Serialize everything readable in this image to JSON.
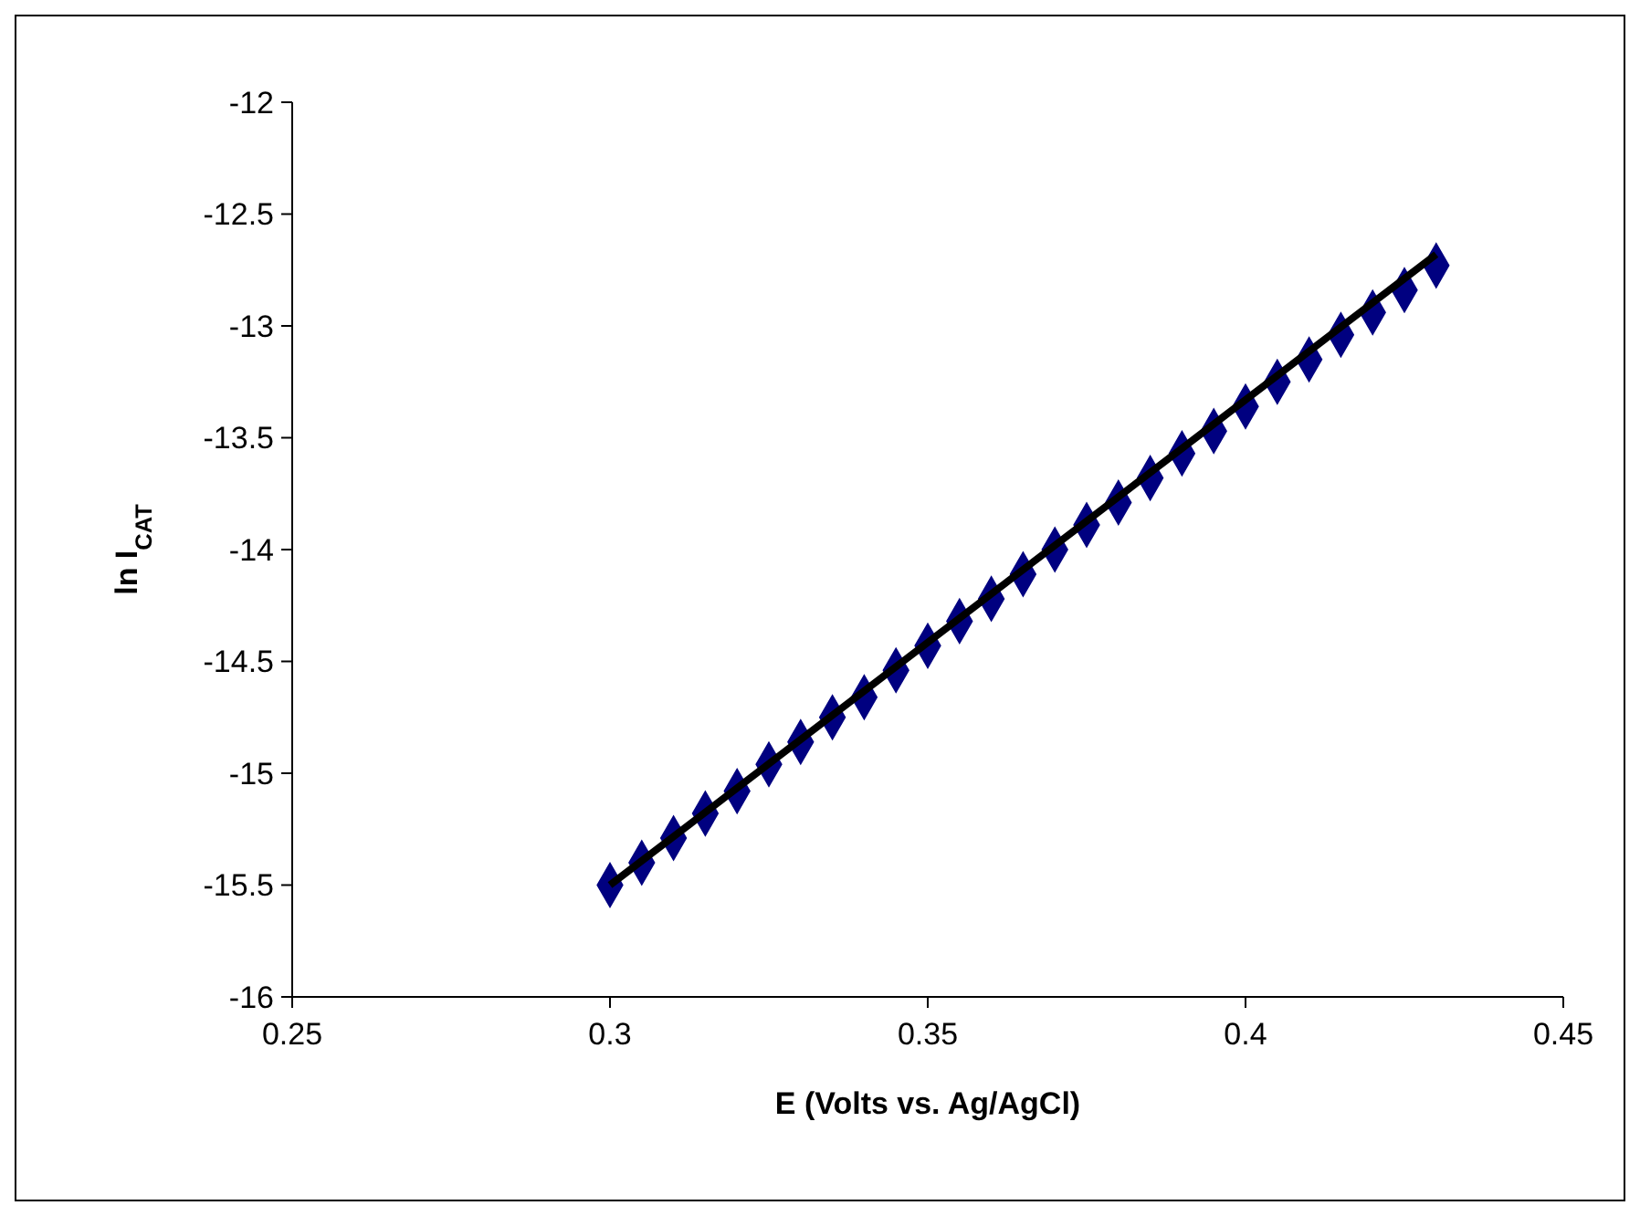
{
  "chart_data": {
    "type": "scatter",
    "xlabel": "E (Volts vs. Ag/AgCl)",
    "ylabel": "ln I$_{CAT}$",
    "xlim": [
      0.25,
      0.45
    ],
    "xticks": [
      0.25,
      0.3,
      0.35,
      0.4,
      0.45
    ],
    "ylim": [
      -16,
      -12
    ],
    "yticks": [
      -16,
      -15.5,
      -15,
      -14.5,
      -14,
      -13.5,
      -13,
      -12.5,
      -12
    ],
    "grid": false,
    "marker": "diamond",
    "series": [
      {
        "color": "#000080",
        "x": [
          0.3,
          0.305,
          0.31,
          0.315,
          0.32,
          0.325,
          0.33,
          0.335,
          0.34,
          0.345,
          0.35,
          0.355,
          0.36,
          0.365,
          0.37,
          0.375,
          0.38,
          0.385,
          0.39,
          0.395,
          0.4,
          0.405,
          0.41,
          0.415,
          0.42,
          0.425,
          0.43
        ],
        "values": [
          -15.5,
          -15.4,
          -15.29,
          -15.18,
          -15.08,
          -14.96,
          -14.86,
          -14.75,
          -14.66,
          -14.54,
          -14.43,
          -14.32,
          -14.22,
          -14.11,
          -14.0,
          -13.89,
          -13.79,
          -13.68,
          -13.57,
          -13.47,
          -13.36,
          -13.25,
          -13.15,
          -13.04,
          -12.94,
          -12.84,
          -12.73
        ]
      },
      {
        "type": "line",
        "color": "#000000",
        "x": [
          0.3,
          0.43
        ],
        "values": [
          -15.5,
          -12.68
        ],
        "marker": "none",
        "line_style": "solid"
      }
    ]
  }
}
